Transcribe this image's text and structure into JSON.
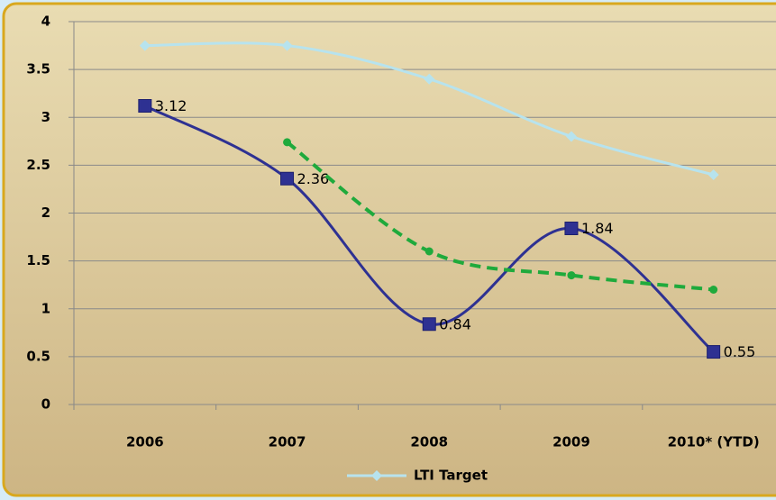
{
  "chart_data": {
    "type": "line",
    "categories": [
      "2006",
      "2007",
      "2008",
      "2009",
      "2010* (YTD)"
    ],
    "series": [
      {
        "name": "LTI Target",
        "color": "#b7e3ee",
        "marker": "diamond",
        "values": [
          3.75,
          3.75,
          3.4,
          2.8,
          2.4
        ]
      },
      {
        "color": "#2e3192",
        "marker": "square",
        "data_labels": true,
        "values": [
          3.12,
          2.36,
          0.84,
          1.84,
          0.55
        ]
      },
      {
        "color": "#1faa3c",
        "marker": "circle",
        "dashed": true,
        "values": [
          null,
          2.74,
          1.6,
          1.35,
          1.2
        ]
      }
    ],
    "ylim": [
      0,
      4
    ],
    "yticks": [
      0,
      0.5,
      1,
      1.5,
      2,
      2.5,
      3,
      3.5,
      4
    ],
    "grid": true,
    "legend": "bottom"
  }
}
